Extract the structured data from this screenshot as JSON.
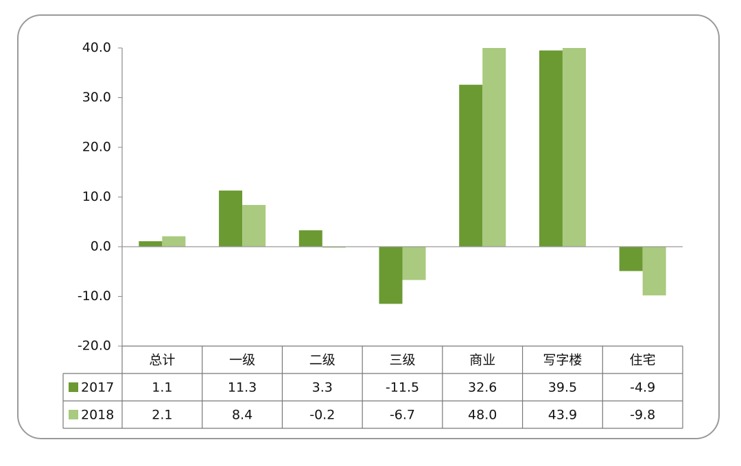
{
  "chart_data": {
    "type": "bar",
    "categories": [
      "总计",
      "一级",
      "二级",
      "三级",
      "商业",
      "写字楼",
      "住宅"
    ],
    "series": [
      {
        "name": "2017",
        "color": "#6b9a32",
        "values": [
          1.1,
          11.3,
          3.3,
          -11.5,
          32.6,
          39.5,
          -4.9
        ],
        "value_labels": [
          "1.1",
          "11.3",
          "3.3",
          "-11.5",
          "32.6",
          "39.5",
          "-4.9"
        ]
      },
      {
        "name": "2018",
        "color": "#a9ca7f",
        "values": [
          2.1,
          8.4,
          -0.2,
          -6.7,
          48.0,
          43.9,
          -9.8
        ],
        "value_labels": [
          "2.1",
          "8.4",
          "-0.2",
          "-6.7",
          "48.0",
          "43.9",
          "-9.8"
        ]
      }
    ],
    "ylim": [
      -20,
      40
    ],
    "yticks": [
      {
        "value": -20,
        "label": "-20.0"
      },
      {
        "value": -10,
        "label": "-10.0"
      },
      {
        "value": 0,
        "label": "0.0"
      },
      {
        "value": 10,
        "label": "10.0"
      },
      {
        "value": 20,
        "label": "20.0"
      },
      {
        "value": 30,
        "label": "30.0"
      },
      {
        "value": 40,
        "label": "40.0"
      }
    ],
    "legend": "table"
  }
}
